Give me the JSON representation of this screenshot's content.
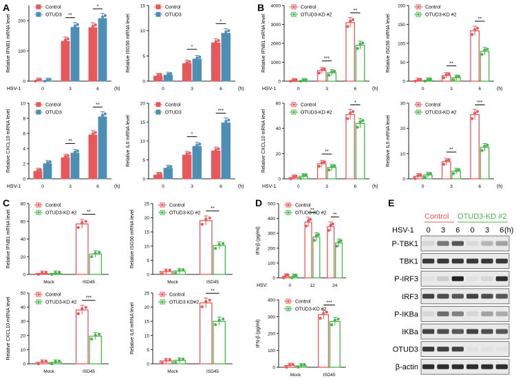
{
  "colors": {
    "red": "#e8575a",
    "blue": "#4d8fb4",
    "green": "#44b549",
    "axis": "#222222"
  },
  "panel_labels": [
    "A",
    "B",
    "C",
    "D",
    "E"
  ],
  "chart_data": [
    {
      "id": "A1",
      "panel": "A",
      "type": "bar",
      "style": "filled",
      "ylabel": "Relative IFNB1 mRNA level",
      "ylim": [
        0,
        250
      ],
      "yticks": [
        0,
        100,
        200
      ],
      "xprefix": "HSV-1",
      "xsuffix": "(h)",
      "categories": [
        "0",
        "3",
        "6"
      ],
      "series": [
        {
          "name": "Control",
          "color": "red",
          "values": [
            1,
            132,
            177
          ]
        },
        {
          "name": "OTUD3",
          "color": "blue",
          "values": [
            1,
            178,
            207
          ]
        }
      ],
      "sig": [
        {
          "i": 1,
          "t": "**"
        },
        {
          "i": 2,
          "t": "*"
        }
      ]
    },
    {
      "id": "A2",
      "panel": "A",
      "type": "bar",
      "style": "filled",
      "ylabel": "Relative ISG56 mRNA level",
      "ylim": [
        0,
        15
      ],
      "yticks": [
        0,
        5,
        10,
        15
      ],
      "xprefix": "",
      "xsuffix": "(h)",
      "categories": [
        "0",
        "3",
        "6"
      ],
      "series": [
        {
          "name": "Control",
          "color": "red",
          "values": [
            1,
            3.5,
            7.6
          ]
        },
        {
          "name": "OTUD3",
          "color": "blue",
          "values": [
            1.2,
            4.4,
            9.5
          ]
        }
      ],
      "sig": [
        {
          "i": 1,
          "t": "*"
        },
        {
          "i": 2,
          "t": "*"
        }
      ]
    },
    {
      "id": "A3",
      "panel": "A",
      "type": "bar",
      "style": "filled",
      "ylabel": "Relative CXCL10 mRNA level",
      "ylim": [
        0,
        10
      ],
      "yticks": [
        0,
        2,
        4,
        6,
        8,
        10
      ],
      "xprefix": "HSV-1",
      "xsuffix": "(h)",
      "categories": [
        "0",
        "3",
        "6"
      ],
      "series": [
        {
          "name": "Control",
          "color": "red",
          "values": [
            1,
            2.8,
            5.8
          ]
        },
        {
          "name": "OTUD3",
          "color": "blue",
          "values": [
            2,
            3.4,
            8.2
          ]
        }
      ],
      "sig": [
        {
          "i": 1,
          "t": "**"
        },
        {
          "i": 2,
          "t": "**"
        }
      ]
    },
    {
      "id": "A4",
      "panel": "A",
      "type": "bar",
      "style": "filled",
      "ylabel": "Relative IL6 mRNA level",
      "ylim": [
        0,
        20
      ],
      "yticks": [
        0,
        5,
        10,
        15,
        20
      ],
      "xprefix": "",
      "xsuffix": "(h)",
      "categories": [
        "0",
        "3",
        "6"
      ],
      "series": [
        {
          "name": "Control",
          "color": "red",
          "values": [
            1,
            6.3,
            7.4
          ]
        },
        {
          "name": "OTUD3",
          "color": "blue",
          "values": [
            2.8,
            8.6,
            14.8
          ]
        }
      ],
      "sig": [
        {
          "i": 1,
          "t": "*"
        },
        {
          "i": 2,
          "t": "***"
        }
      ]
    },
    {
      "id": "B1",
      "panel": "B",
      "type": "bar",
      "style": "outline",
      "ylabel": "Relative IFNB1 mRNA level",
      "ylim": [
        0,
        4000
      ],
      "yticks": [
        0,
        1000,
        2000,
        3000,
        4000
      ],
      "xprefix": "HSV-1",
      "xsuffix": "(h)",
      "categories": [
        "0",
        "3",
        "6"
      ],
      "series": [
        {
          "name": "Control",
          "color": "red",
          "values": [
            5,
            560,
            3100
          ]
        },
        {
          "name": "OTUD3-KD #2",
          "color": "green",
          "values": [
            5,
            440,
            1900
          ]
        }
      ],
      "sig": [
        {
          "i": 1,
          "t": "***"
        },
        {
          "i": 2,
          "t": "**"
        }
      ]
    },
    {
      "id": "B2",
      "panel": "B",
      "type": "bar",
      "style": "outline",
      "ylabel": "Relative ISG56 mRNA level",
      "ylim": [
        0,
        200
      ],
      "yticks": [
        0,
        50,
        100,
        150,
        200
      ],
      "xprefix": "",
      "xsuffix": "(h)",
      "categories": [
        "0",
        "3",
        "6"
      ],
      "series": [
        {
          "name": "Control",
          "color": "red",
          "values": [
            1,
            15,
            133
          ]
        },
        {
          "name": "OTUD3-KD #2",
          "color": "green",
          "values": [
            2,
            9,
            79
          ]
        }
      ],
      "sig": [
        {
          "i": 1,
          "t": "**"
        },
        {
          "i": 2,
          "t": "**"
        }
      ]
    },
    {
      "id": "B3",
      "panel": "B",
      "type": "bar",
      "style": "outline",
      "ylabel": "Relative CXCL10 mRNA level",
      "ylim": [
        0,
        60
      ],
      "yticks": [
        0,
        20,
        40,
        60
      ],
      "xprefix": "HSV-1",
      "xsuffix": "(h)",
      "categories": [
        "0",
        "3",
        "6"
      ],
      "series": [
        {
          "name": "Control",
          "color": "red",
          "values": [
            1,
            12,
            51
          ]
        },
        {
          "name": "OTUD3-KD #2",
          "color": "green",
          "values": [
            2,
            9,
            44
          ]
        }
      ],
      "sig": [
        {
          "i": 1,
          "t": "**"
        },
        {
          "i": 2,
          "t": "*"
        }
      ]
    },
    {
      "id": "B4",
      "panel": "B",
      "type": "bar",
      "style": "outline",
      "ylabel": "Relative IL6 mRNA level",
      "ylim": [
        0,
        30
      ],
      "yticks": [
        0,
        10,
        20,
        30
      ],
      "xprefix": "",
      "xsuffix": "(h)",
      "categories": [
        "0",
        "3",
        "6"
      ],
      "series": [
        {
          "name": "Control",
          "color": "red",
          "values": [
            1,
            6.8,
            25.5
          ]
        },
        {
          "name": "OTUD3-KD #2",
          "color": "green",
          "values": [
            1.5,
            3,
            12.5
          ]
        }
      ],
      "sig": [
        {
          "i": 1,
          "t": "**"
        },
        {
          "i": 2,
          "t": "***"
        }
      ]
    },
    {
      "id": "C1",
      "panel": "C",
      "type": "bar",
      "style": "outline",
      "ylabel": "Relative IFNB1 mRNA level",
      "ylim": [
        0,
        80
      ],
      "yticks": [
        0,
        20,
        40,
        60,
        80
      ],
      "xprefix": "",
      "xsuffix": "",
      "categories": [
        "Mock",
        "ISD45"
      ],
      "series": [
        {
          "name": "Control",
          "color": "red",
          "values": [
            1,
            57
          ]
        },
        {
          "name": "OTUD3-KD #2",
          "color": "green",
          "values": [
            1,
            23
          ]
        }
      ],
      "sig": [
        {
          "i": 1,
          "t": "**"
        }
      ]
    },
    {
      "id": "C2",
      "panel": "C",
      "type": "bar",
      "style": "outline",
      "ylabel": "Relative ISG56 mRNA level",
      "ylim": [
        0,
        25
      ],
      "yticks": [
        0,
        5,
        10,
        15,
        20,
        25
      ],
      "xprefix": "",
      "xsuffix": "",
      "categories": [
        "Mock",
        "ISD45"
      ],
      "series": [
        {
          "name": "Control",
          "color": "red",
          "values": [
            1,
            19
          ]
        },
        {
          "name": "OTUD3-KD #2",
          "color": "green",
          "values": [
            1.2,
            10.2
          ]
        }
      ],
      "sig": [
        {
          "i": 1,
          "t": "**"
        }
      ]
    },
    {
      "id": "C3",
      "panel": "C",
      "type": "bar",
      "style": "outline",
      "ylabel": "Relative CXCL10 mRNA level",
      "ylim": [
        0,
        50
      ],
      "yticks": [
        0,
        10,
        20,
        30,
        40,
        50
      ],
      "xprefix": "",
      "xsuffix": "",
      "categories": [
        "Mock",
        "ISD45"
      ],
      "series": [
        {
          "name": "Control",
          "color": "red",
          "values": [
            1,
            38
          ]
        },
        {
          "name": "OTUD3-KD #2",
          "color": "green",
          "values": [
            1,
            19.5
          ]
        }
      ],
      "sig": [
        {
          "i": 1,
          "t": "***"
        }
      ]
    },
    {
      "id": "C4",
      "panel": "C",
      "type": "bar",
      "style": "outline",
      "ylabel": "Relative IL6 mRNA level",
      "ylim": [
        0,
        25
      ],
      "yticks": [
        0,
        5,
        10,
        15,
        20,
        25
      ],
      "xprefix": "",
      "xsuffix": "",
      "categories": [
        "Mock",
        "ISD45"
      ],
      "series": [
        {
          "name": "Control",
          "color": "red",
          "values": [
            1,
            21.5
          ]
        },
        {
          "name": "OTUD3 KD#2",
          "color": "green",
          "values": [
            1.2,
            15
          ]
        }
      ],
      "sig": [
        {
          "i": 1,
          "t": "**"
        }
      ]
    },
    {
      "id": "D1",
      "panel": "D",
      "type": "bar",
      "style": "outline",
      "ylabel": "IFN-β (pg/ml)",
      "ylim": [
        0,
        500
      ],
      "yticks": [
        0,
        100,
        200,
        300,
        400,
        500
      ],
      "xprefix": "HSV:",
      "xsuffix": "",
      "categories": [
        "0",
        "12",
        "24"
      ],
      "series": [
        {
          "name": "Control",
          "color": "red",
          "values": [
            10,
            375,
            345
          ]
        },
        {
          "name": "OTUD3-KD #2",
          "color": "green",
          "values": [
            8,
            275,
            235
          ]
        }
      ],
      "sig": [
        {
          "i": 1,
          "t": "**"
        },
        {
          "i": 2,
          "t": "**"
        }
      ]
    },
    {
      "id": "D2",
      "panel": "D",
      "type": "bar",
      "style": "outline",
      "ylabel": "IFN-β (pg/ml)",
      "ylim": [
        0,
        400
      ],
      "yticks": [
        0,
        100,
        200,
        300,
        400
      ],
      "xprefix": "",
      "xsuffix": "",
      "categories": [
        "Mock",
        "ISD45"
      ],
      "series": [
        {
          "name": "Control",
          "color": "red",
          "values": [
            10,
            312
          ]
        },
        {
          "name": "OTUD3-KD #2",
          "color": "green",
          "values": [
            8,
            272
          ]
        }
      ],
      "sig": [
        {
          "i": 1,
          "t": "***"
        }
      ]
    }
  ],
  "blot": {
    "group_control": "Control",
    "group_kd": "OTUD3-KD #2",
    "row_label": "HSV-1",
    "unit": "(h)",
    "lanes": [
      "0",
      "3",
      "6",
      "0",
      "3",
      "6"
    ],
    "bands": [
      {
        "name": "P-TBK1",
        "intensity": [
          0.1,
          0.55,
          0.7,
          0.08,
          0.25,
          0.35
        ]
      },
      {
        "name": "TBK1",
        "intensity": [
          0.85,
          0.85,
          0.85,
          0.85,
          0.85,
          0.85
        ]
      },
      {
        "name": "P-IRF3",
        "intensity": [
          0.05,
          0.15,
          0.95,
          0.05,
          0.1,
          0.9
        ]
      },
      {
        "name": "IRF3",
        "intensity": [
          0.8,
          0.75,
          0.7,
          0.8,
          0.75,
          0.7
        ]
      },
      {
        "name": "P-IKBa",
        "intensity": [
          0.1,
          0.6,
          0.5,
          0.1,
          0.35,
          0.3
        ]
      },
      {
        "name": "IKBa",
        "intensity": [
          0.8,
          0.75,
          0.7,
          0.8,
          0.75,
          0.7
        ]
      },
      {
        "name": "OTUD3",
        "intensity": [
          0.85,
          0.8,
          0.8,
          0.05,
          0.05,
          0.05
        ]
      },
      {
        "name": "β-actin",
        "intensity": [
          0.9,
          0.9,
          0.9,
          0.9,
          0.9,
          0.9
        ]
      }
    ]
  }
}
